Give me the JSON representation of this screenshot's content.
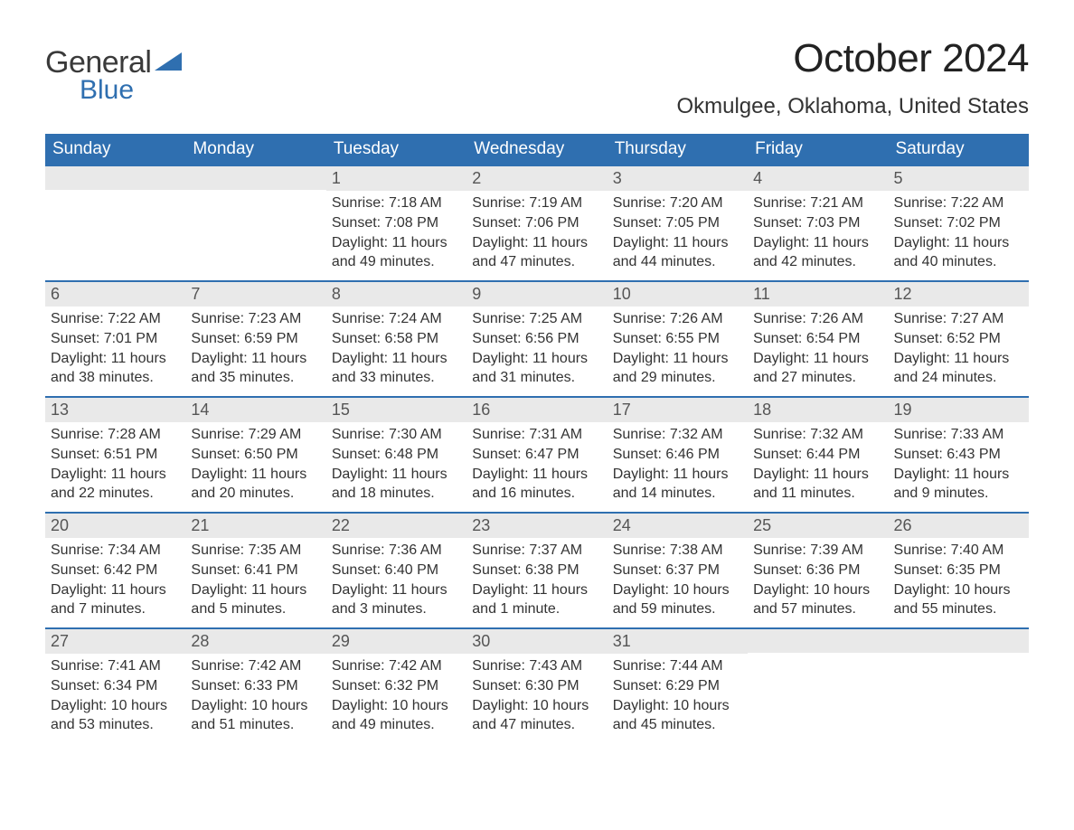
{
  "brand": {
    "word1": "General",
    "word2": "Blue",
    "accent_color": "#2f6fb0"
  },
  "title": "October 2024",
  "location": "Okmulgee, Oklahoma, United States",
  "header_bg": "#2f6fb0",
  "header_text_color": "#ffffff",
  "daynum_bg": "#e9e9e9",
  "border_color": "#2f6fb0",
  "weekdays": [
    "Sunday",
    "Monday",
    "Tuesday",
    "Wednesday",
    "Thursday",
    "Friday",
    "Saturday"
  ],
  "weeks": [
    [
      null,
      null,
      {
        "n": "1",
        "sr": "Sunrise: 7:18 AM",
        "ss": "Sunset: 7:08 PM",
        "d1": "Daylight: 11 hours",
        "d2": "and 49 minutes."
      },
      {
        "n": "2",
        "sr": "Sunrise: 7:19 AM",
        "ss": "Sunset: 7:06 PM",
        "d1": "Daylight: 11 hours",
        "d2": "and 47 minutes."
      },
      {
        "n": "3",
        "sr": "Sunrise: 7:20 AM",
        "ss": "Sunset: 7:05 PM",
        "d1": "Daylight: 11 hours",
        "d2": "and 44 minutes."
      },
      {
        "n": "4",
        "sr": "Sunrise: 7:21 AM",
        "ss": "Sunset: 7:03 PM",
        "d1": "Daylight: 11 hours",
        "d2": "and 42 minutes."
      },
      {
        "n": "5",
        "sr": "Sunrise: 7:22 AM",
        "ss": "Sunset: 7:02 PM",
        "d1": "Daylight: 11 hours",
        "d2": "and 40 minutes."
      }
    ],
    [
      {
        "n": "6",
        "sr": "Sunrise: 7:22 AM",
        "ss": "Sunset: 7:01 PM",
        "d1": "Daylight: 11 hours",
        "d2": "and 38 minutes."
      },
      {
        "n": "7",
        "sr": "Sunrise: 7:23 AM",
        "ss": "Sunset: 6:59 PM",
        "d1": "Daylight: 11 hours",
        "d2": "and 35 minutes."
      },
      {
        "n": "8",
        "sr": "Sunrise: 7:24 AM",
        "ss": "Sunset: 6:58 PM",
        "d1": "Daylight: 11 hours",
        "d2": "and 33 minutes."
      },
      {
        "n": "9",
        "sr": "Sunrise: 7:25 AM",
        "ss": "Sunset: 6:56 PM",
        "d1": "Daylight: 11 hours",
        "d2": "and 31 minutes."
      },
      {
        "n": "10",
        "sr": "Sunrise: 7:26 AM",
        "ss": "Sunset: 6:55 PM",
        "d1": "Daylight: 11 hours",
        "d2": "and 29 minutes."
      },
      {
        "n": "11",
        "sr": "Sunrise: 7:26 AM",
        "ss": "Sunset: 6:54 PM",
        "d1": "Daylight: 11 hours",
        "d2": "and 27 minutes."
      },
      {
        "n": "12",
        "sr": "Sunrise: 7:27 AM",
        "ss": "Sunset: 6:52 PM",
        "d1": "Daylight: 11 hours",
        "d2": "and 24 minutes."
      }
    ],
    [
      {
        "n": "13",
        "sr": "Sunrise: 7:28 AM",
        "ss": "Sunset: 6:51 PM",
        "d1": "Daylight: 11 hours",
        "d2": "and 22 minutes."
      },
      {
        "n": "14",
        "sr": "Sunrise: 7:29 AM",
        "ss": "Sunset: 6:50 PM",
        "d1": "Daylight: 11 hours",
        "d2": "and 20 minutes."
      },
      {
        "n": "15",
        "sr": "Sunrise: 7:30 AM",
        "ss": "Sunset: 6:48 PM",
        "d1": "Daylight: 11 hours",
        "d2": "and 18 minutes."
      },
      {
        "n": "16",
        "sr": "Sunrise: 7:31 AM",
        "ss": "Sunset: 6:47 PM",
        "d1": "Daylight: 11 hours",
        "d2": "and 16 minutes."
      },
      {
        "n": "17",
        "sr": "Sunrise: 7:32 AM",
        "ss": "Sunset: 6:46 PM",
        "d1": "Daylight: 11 hours",
        "d2": "and 14 minutes."
      },
      {
        "n": "18",
        "sr": "Sunrise: 7:32 AM",
        "ss": "Sunset: 6:44 PM",
        "d1": "Daylight: 11 hours",
        "d2": "and 11 minutes."
      },
      {
        "n": "19",
        "sr": "Sunrise: 7:33 AM",
        "ss": "Sunset: 6:43 PM",
        "d1": "Daylight: 11 hours",
        "d2": "and 9 minutes."
      }
    ],
    [
      {
        "n": "20",
        "sr": "Sunrise: 7:34 AM",
        "ss": "Sunset: 6:42 PM",
        "d1": "Daylight: 11 hours",
        "d2": "and 7 minutes."
      },
      {
        "n": "21",
        "sr": "Sunrise: 7:35 AM",
        "ss": "Sunset: 6:41 PM",
        "d1": "Daylight: 11 hours",
        "d2": "and 5 minutes."
      },
      {
        "n": "22",
        "sr": "Sunrise: 7:36 AM",
        "ss": "Sunset: 6:40 PM",
        "d1": "Daylight: 11 hours",
        "d2": "and 3 minutes."
      },
      {
        "n": "23",
        "sr": "Sunrise: 7:37 AM",
        "ss": "Sunset: 6:38 PM",
        "d1": "Daylight: 11 hours",
        "d2": "and 1 minute."
      },
      {
        "n": "24",
        "sr": "Sunrise: 7:38 AM",
        "ss": "Sunset: 6:37 PM",
        "d1": "Daylight: 10 hours",
        "d2": "and 59 minutes."
      },
      {
        "n": "25",
        "sr": "Sunrise: 7:39 AM",
        "ss": "Sunset: 6:36 PM",
        "d1": "Daylight: 10 hours",
        "d2": "and 57 minutes."
      },
      {
        "n": "26",
        "sr": "Sunrise: 7:40 AM",
        "ss": "Sunset: 6:35 PM",
        "d1": "Daylight: 10 hours",
        "d2": "and 55 minutes."
      }
    ],
    [
      {
        "n": "27",
        "sr": "Sunrise: 7:41 AM",
        "ss": "Sunset: 6:34 PM",
        "d1": "Daylight: 10 hours",
        "d2": "and 53 minutes."
      },
      {
        "n": "28",
        "sr": "Sunrise: 7:42 AM",
        "ss": "Sunset: 6:33 PM",
        "d1": "Daylight: 10 hours",
        "d2": "and 51 minutes."
      },
      {
        "n": "29",
        "sr": "Sunrise: 7:42 AM",
        "ss": "Sunset: 6:32 PM",
        "d1": "Daylight: 10 hours",
        "d2": "and 49 minutes."
      },
      {
        "n": "30",
        "sr": "Sunrise: 7:43 AM",
        "ss": "Sunset: 6:30 PM",
        "d1": "Daylight: 10 hours",
        "d2": "and 47 minutes."
      },
      {
        "n": "31",
        "sr": "Sunrise: 7:44 AM",
        "ss": "Sunset: 6:29 PM",
        "d1": "Daylight: 10 hours",
        "d2": "and 45 minutes."
      },
      null,
      null
    ]
  ]
}
